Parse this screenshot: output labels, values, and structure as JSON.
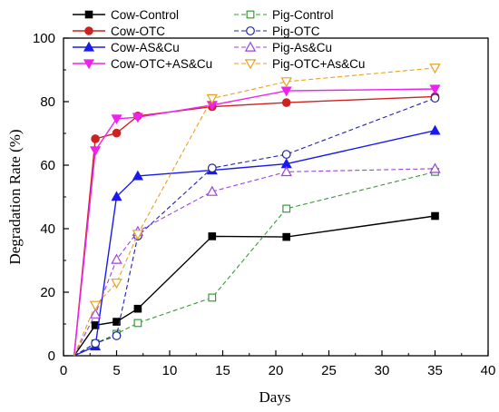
{
  "chart_data": {
    "type": "line",
    "xlabel": "Days",
    "ylabel": "Degradation Rate (%)",
    "xlim": [
      0,
      40
    ],
    "ylim": [
      0,
      100
    ],
    "xticks": [
      0,
      5,
      10,
      15,
      20,
      25,
      30,
      35,
      40
    ],
    "yticks": [
      0,
      20,
      40,
      60,
      80,
      100
    ],
    "grid": false,
    "legend_position": "top-left",
    "series": [
      {
        "name": "Cow-Control",
        "color": "#000000",
        "dashed": false,
        "marker": "square",
        "filled": true,
        "x": [
          1,
          3,
          5,
          7,
          14,
          21,
          35
        ],
        "y": [
          0,
          9.6,
          10.7,
          14.8,
          37.6,
          37.4,
          44
        ]
      },
      {
        "name": "Cow-OTC",
        "color": "#cc2222",
        "dashed": false,
        "marker": "circle",
        "filled": true,
        "x": [
          1,
          3,
          5,
          7,
          14,
          21,
          35
        ],
        "y": [
          0,
          68.3,
          70.1,
          75.5,
          78.4,
          79.7,
          81.6
        ]
      },
      {
        "name": "Cow-AS&Cu",
        "color": "#1a1aee",
        "dashed": false,
        "marker": "triangle-up",
        "filled": true,
        "x": [
          1,
          3,
          5,
          7,
          14,
          21,
          35
        ],
        "y": [
          0,
          3,
          50.1,
          56.6,
          58.4,
          60.4,
          70.9
        ]
      },
      {
        "name": "Cow-OTC+AS&Cu",
        "color": "#ee22ee",
        "dashed": false,
        "marker": "triangle-down",
        "filled": true,
        "x": [
          1,
          3,
          5,
          7,
          14,
          21,
          35
        ],
        "y": [
          0,
          64.6,
          74.6,
          75.1,
          78.9,
          83.4,
          84
        ]
      },
      {
        "name": "Pig-Control",
        "color": "#3a9a3a",
        "dashed": true,
        "marker": "square",
        "filled": false,
        "x": [
          1,
          3,
          5,
          7,
          14,
          21,
          35
        ],
        "y": [
          0,
          3.9,
          6.9,
          10.3,
          18.3,
          46.3,
          57.9
        ]
      },
      {
        "name": "Pig-OTC",
        "color": "#2222aa",
        "dashed": true,
        "marker": "circle",
        "filled": false,
        "x": [
          1,
          3,
          5,
          7,
          14,
          21,
          35
        ],
        "y": [
          0,
          3.9,
          6.3,
          37.7,
          59.1,
          63.4,
          81.1
        ]
      },
      {
        "name": "Pig-As&Cu",
        "color": "#9a44dd",
        "dashed": true,
        "marker": "triangle-up",
        "filled": false,
        "x": [
          1,
          3,
          5,
          7,
          14,
          21,
          35
        ],
        "y": [
          0,
          13.1,
          30.3,
          39.1,
          51.7,
          57.9,
          58.9
        ]
      },
      {
        "name": "Pig-OTC+As&Cu",
        "color": "#e8a020",
        "dashed": true,
        "marker": "triangle-down",
        "filled": false,
        "x": [
          1,
          3,
          5,
          7,
          14,
          21,
          35
        ],
        "y": [
          0,
          15.9,
          22.9,
          38.3,
          81,
          86.3,
          90.6
        ]
      }
    ]
  }
}
